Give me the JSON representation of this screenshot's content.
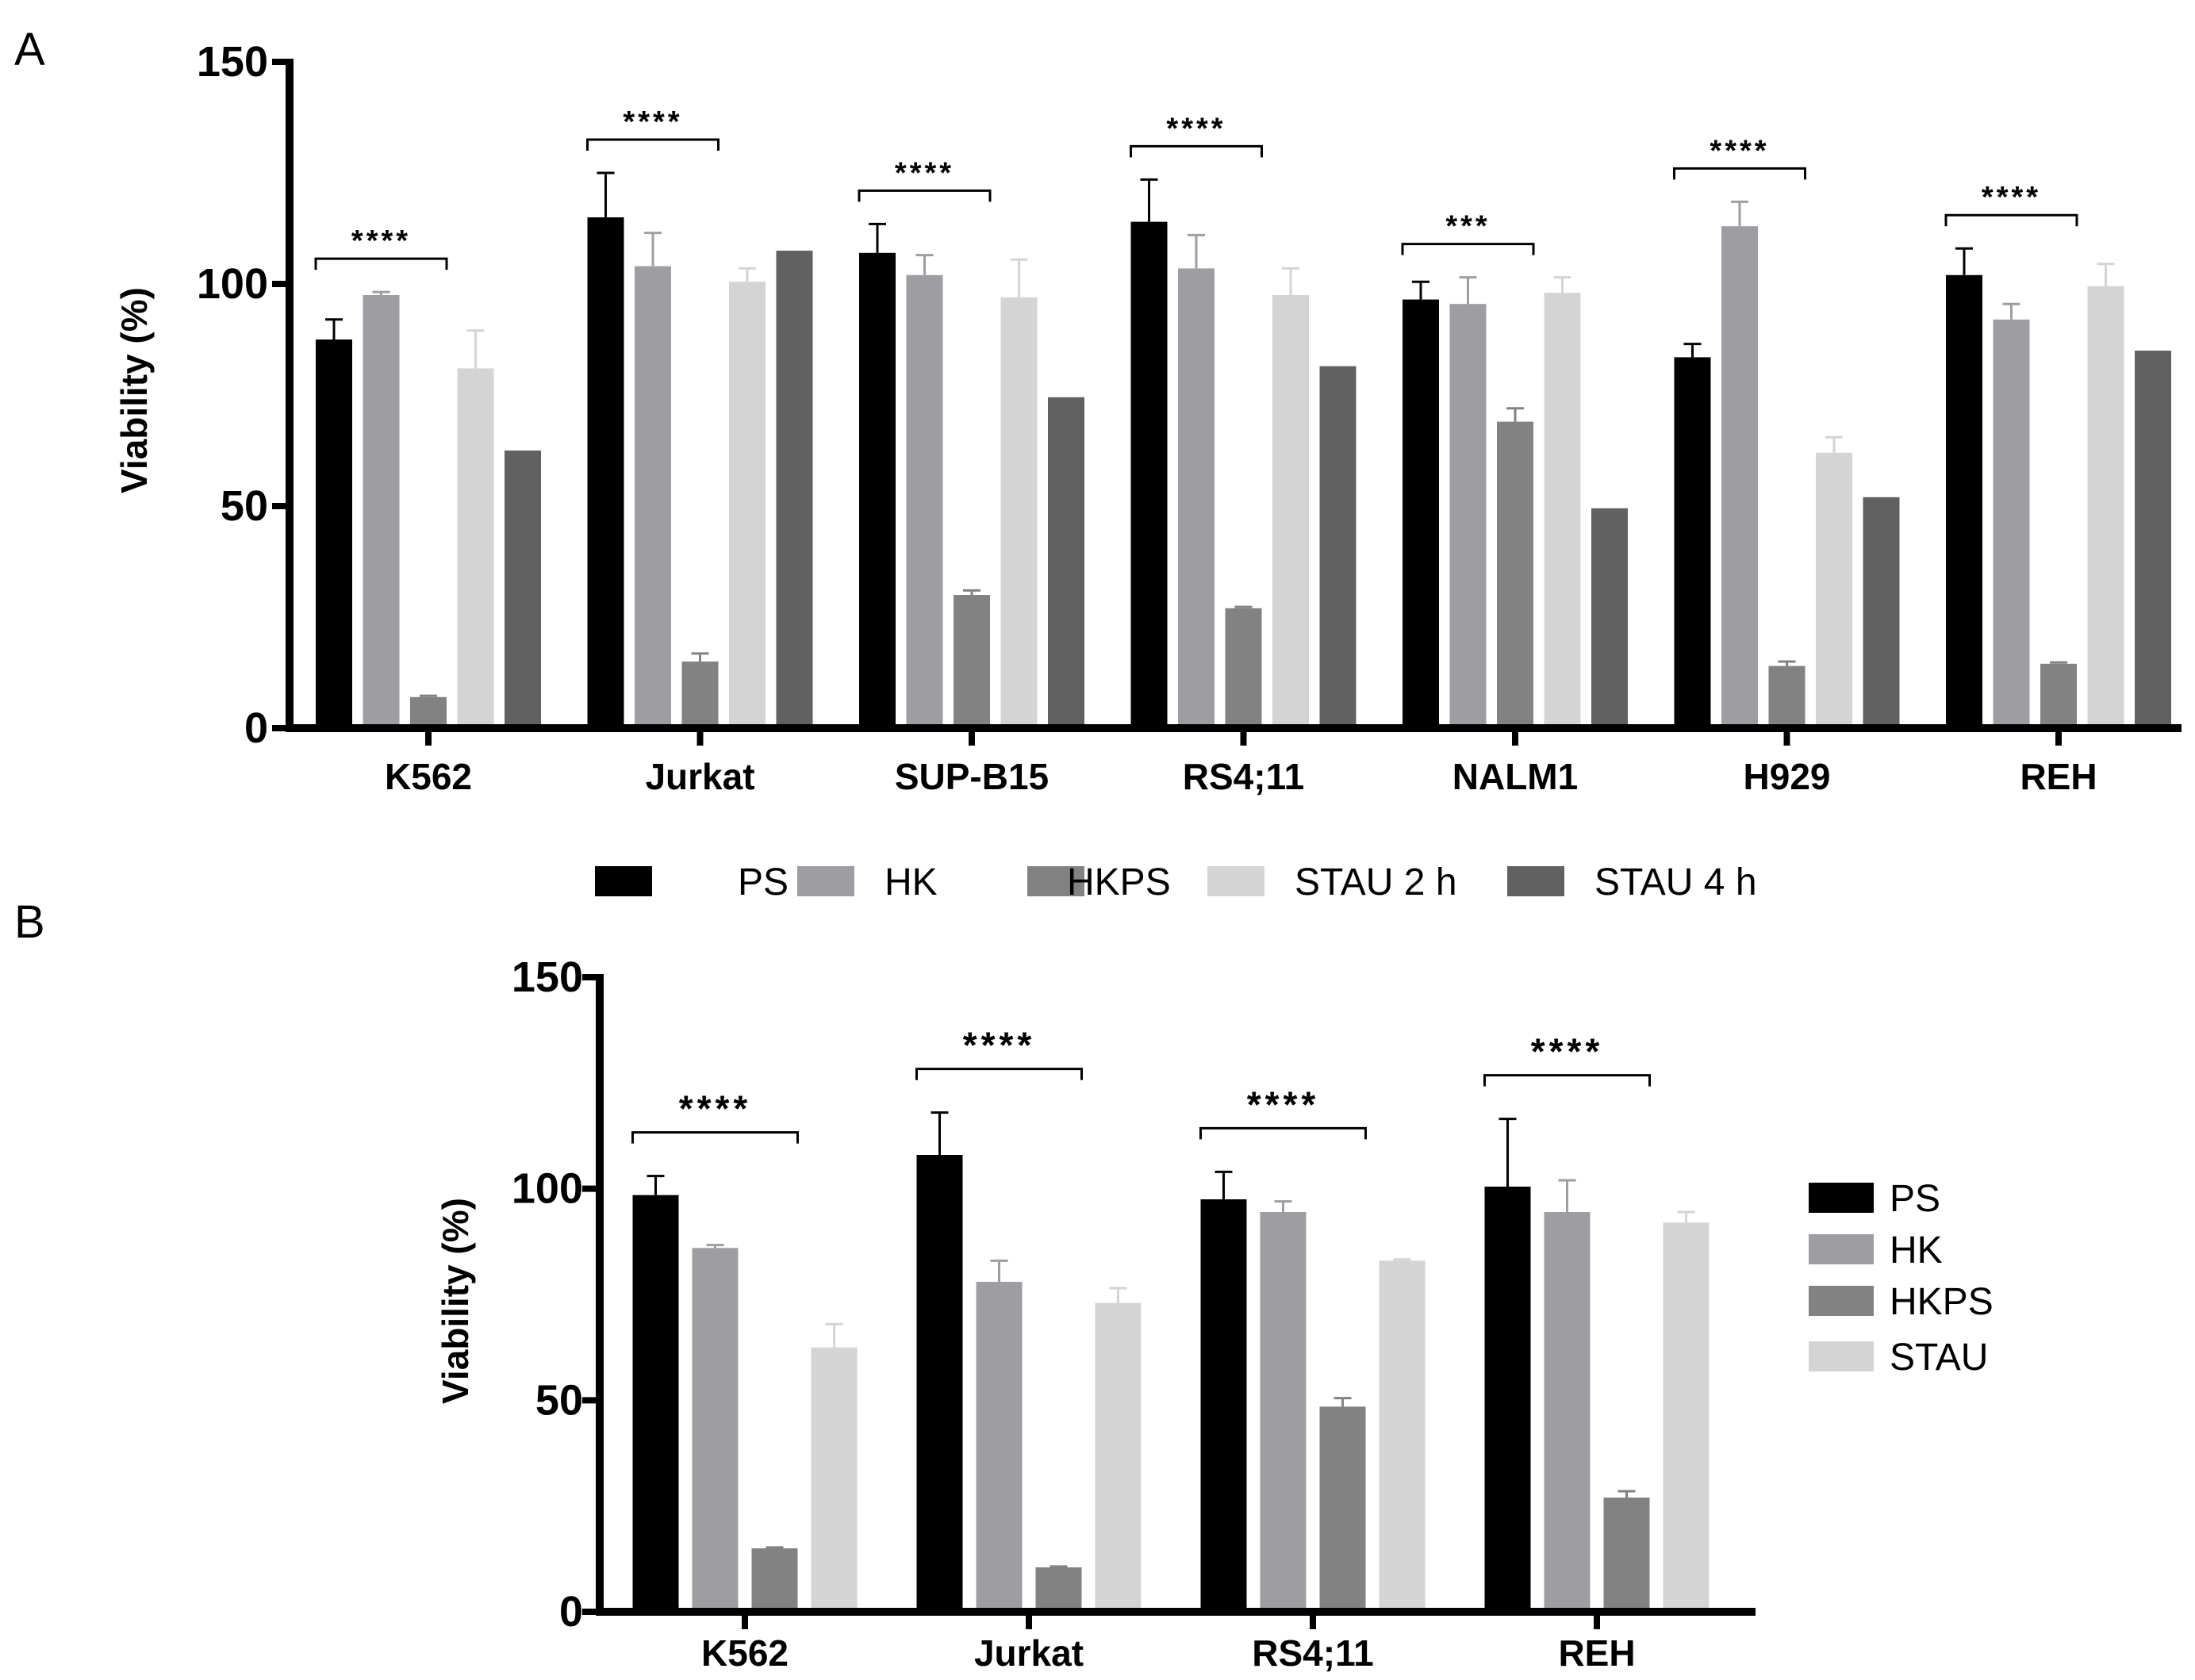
{
  "chart_data": [
    {
      "panel": "A",
      "type": "bar",
      "title": "",
      "xlabel": "",
      "ylabel": "Viability (%)",
      "ylim": [
        0,
        150
      ],
      "yticks": [
        "0",
        "50",
        "100",
        "150"
      ],
      "ytick_values": [
        0,
        50,
        100,
        150
      ],
      "legend_position": "bottom",
      "categories": [
        "K562",
        "Jurkat",
        "SUP-B15",
        "RS4;11",
        "NALM1",
        "H929",
        "REH"
      ],
      "series": [
        {
          "name": "PS",
          "color": "#000000",
          "values": [
            87.5,
            115,
            107,
            114,
            96.5,
            83.5,
            102
          ],
          "errors": [
            4.5,
            10,
            6.5,
            9.5,
            4,
            3,
            6
          ]
        },
        {
          "name": "HK",
          "color": "#9e9ea2",
          "values": [
            97.5,
            104,
            102,
            103.5,
            95.5,
            113,
            92
          ],
          "errors": [
            0.7,
            7.5,
            4.5,
            7.5,
            6,
            5.5,
            3.5
          ]
        },
        {
          "name": "HKPS",
          "color": "#828282",
          "values": [
            7,
            15,
            30,
            27,
            69,
            14,
            14.5
          ],
          "errors": [
            0.3,
            1.8,
            1,
            0.3,
            3,
            1,
            0.3
          ]
        },
        {
          "name": "STAU 2 h",
          "color": "#d4d4d4",
          "values": [
            81,
            100.5,
            97,
            97.5,
            98,
            62,
            99.5
          ],
          "errors": [
            8.5,
            3,
            8.5,
            6,
            3.5,
            3.5,
            5
          ]
        },
        {
          "name": "STAU 4 h",
          "color": "#616161",
          "values": [
            62.5,
            107.5,
            74.5,
            81.5,
            49.5,
            52,
            85
          ],
          "errors": [
            0,
            0,
            0,
            0,
            0,
            0,
            0
          ]
        }
      ],
      "significance": [
        {
          "category": "K562",
          "label": "****"
        },
        {
          "category": "Jurkat",
          "label": "****"
        },
        {
          "category": "SUP-B15",
          "label": "****"
        },
        {
          "category": "RS4;11",
          "label": "****"
        },
        {
          "category": "NALM1",
          "label": "***"
        },
        {
          "category": "H929",
          "label": "****"
        },
        {
          "category": "REH",
          "label": "****"
        }
      ]
    },
    {
      "panel": "B",
      "type": "bar",
      "title": "",
      "xlabel": "",
      "ylabel": "Viability (%)",
      "ylim": [
        0,
        150
      ],
      "yticks": [
        "0",
        "50",
        "100",
        "150"
      ],
      "ytick_values": [
        0,
        50,
        100,
        150
      ],
      "legend_position": "right",
      "categories": [
        "K562",
        "Jurkat",
        "RS4;11",
        "REH"
      ],
      "series": [
        {
          "name": "PS",
          "color": "#000000",
          "values": [
            98.5,
            108,
            97.5,
            100.5
          ],
          "errors": [
            4.5,
            10,
            6.5,
            16
          ]
        },
        {
          "name": "HK",
          "color": "#9e9ea2",
          "values": [
            86,
            78,
            94.5,
            94.5
          ],
          "errors": [
            0.7,
            5,
            2.5,
            7.5
          ]
        },
        {
          "name": "HKPS",
          "color": "#828282",
          "values": [
            15,
            10.5,
            48.5,
            27
          ],
          "errors": [
            0.2,
            0.2,
            2,
            1.5
          ]
        },
        {
          "name": "STAU",
          "color": "#d4d4d4",
          "values": [
            62.5,
            73,
            83,
            92
          ],
          "errors": [
            5.5,
            3.5,
            0.3,
            2.5
          ]
        }
      ],
      "significance": [
        {
          "category": "K562",
          "label": "****"
        },
        {
          "category": "Jurkat",
          "label": "****"
        },
        {
          "category": "RS4;11",
          "label": "****"
        },
        {
          "category": "REH",
          "label": "****"
        }
      ]
    }
  ]
}
